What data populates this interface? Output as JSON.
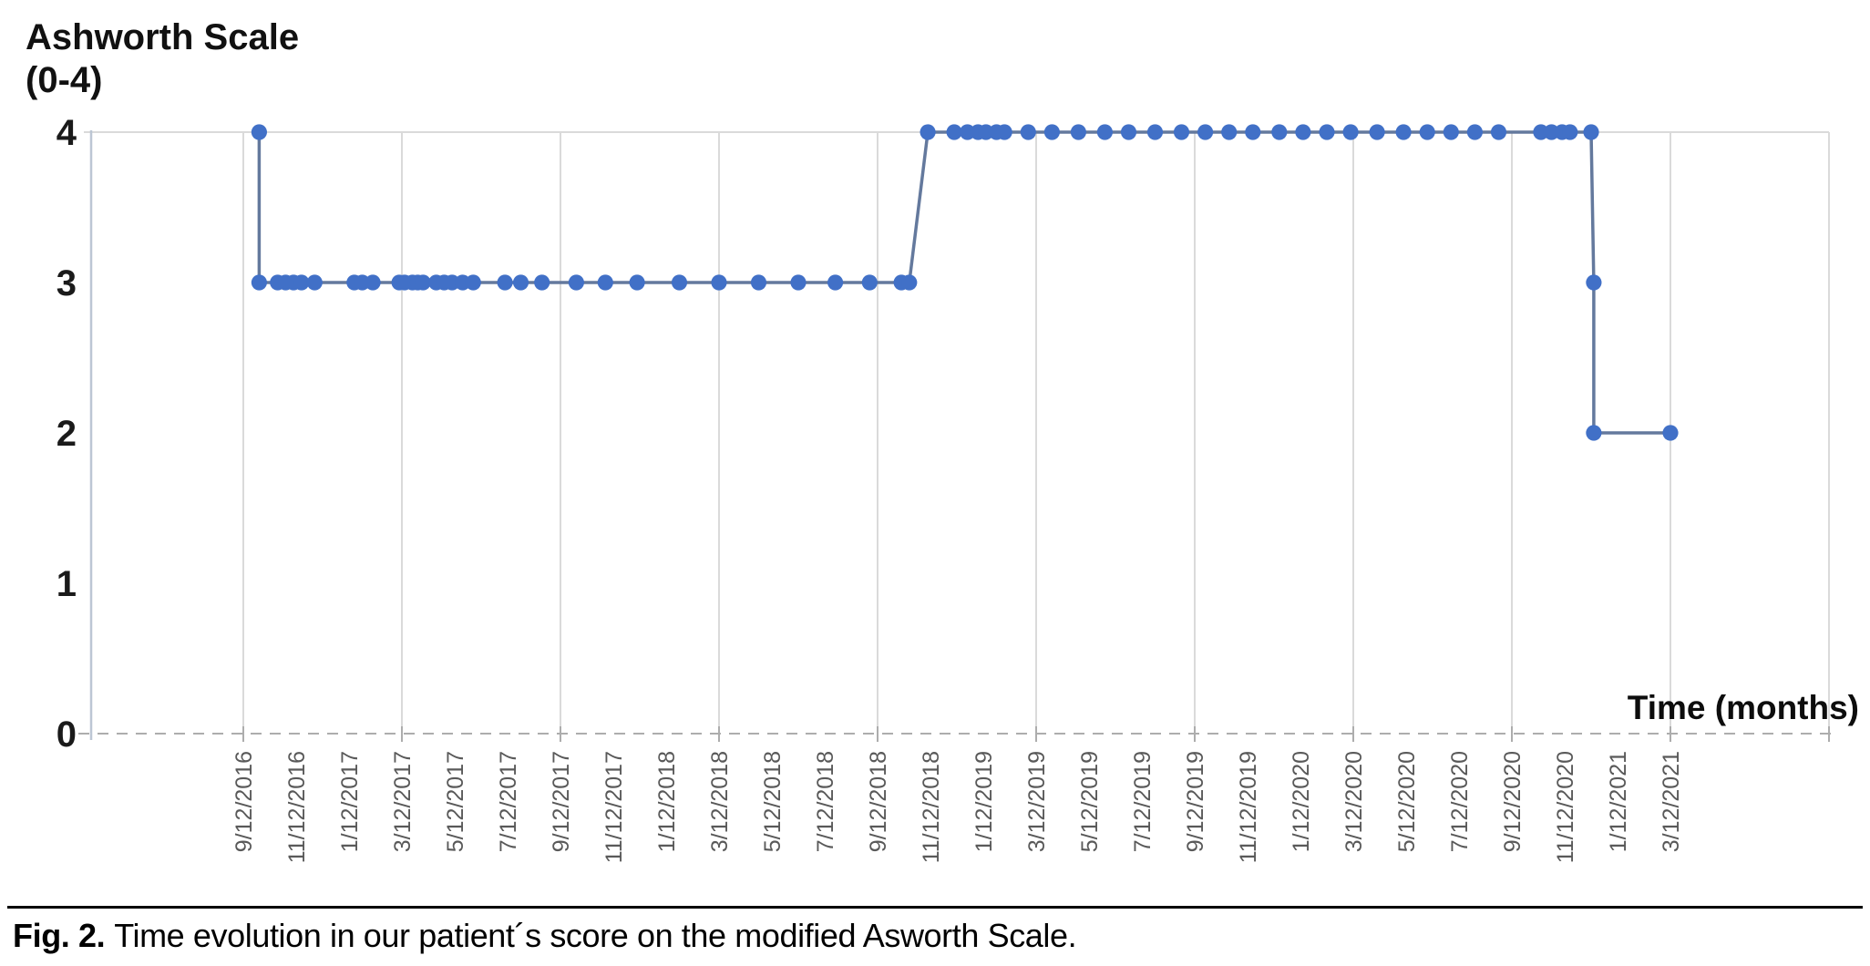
{
  "figure": {
    "title_line1": "Ashworth Scale",
    "title_line2": "(0-4)",
    "time_axis_label": "Time (months)",
    "caption_prefix": "Fig. 2.",
    "caption_text": "Time evolution in our patient´s score on the modified Asworth Scale."
  },
  "chart_data": {
    "type": "line",
    "title": "Ashworth Scale (0-4)",
    "xlabel": "Time (months)",
    "ylabel": "Ashworth Scale (0-4)",
    "ylim": [
      0,
      4
    ],
    "yticks": [
      4,
      3,
      2,
      1,
      0
    ],
    "x_unit": "months since 9/12/2016 (tick labels every 2 months, gridlines every 6 months)",
    "categories": [
      "9/12/2016",
      "11/12/2016",
      "1/12/2017",
      "3/12/2017",
      "5/12/2017",
      "7/12/2017",
      "9/12/2017",
      "11/12/2017",
      "1/12/2018",
      "3/12/2018",
      "5/12/2018",
      "7/12/2018",
      "9/12/2018",
      "11/12/2018",
      "1/12/2019",
      "3/12/2019",
      "5/12/2019",
      "7/12/2019",
      "9/12/2019",
      "11/12/2019",
      "1/12/2020",
      "3/12/2020",
      "5/12/2020",
      "7/12/2020",
      "9/12/2020",
      "11/12/2020",
      "1/12/2021",
      "3/12/2021"
    ],
    "grid": "vertical gridlines every 6 months plus top line at y=4; dashed baseline at y=0",
    "legend_position": "none",
    "points": [
      [
        0.6,
        4
      ],
      [
        0.6,
        3
      ],
      [
        1.3,
        3
      ],
      [
        1.6,
        3
      ],
      [
        1.9,
        3
      ],
      [
        2.2,
        3
      ],
      [
        2.7,
        3
      ],
      [
        4.2,
        3
      ],
      [
        4.5,
        3
      ],
      [
        4.9,
        3
      ],
      [
        5.9,
        3
      ],
      [
        6.1,
        3
      ],
      [
        6.4,
        3
      ],
      [
        6.6,
        3
      ],
      [
        6.8,
        3
      ],
      [
        7.3,
        3
      ],
      [
        7.6,
        3
      ],
      [
        7.9,
        3
      ],
      [
        8.3,
        3
      ],
      [
        8.7,
        3
      ],
      [
        9.9,
        3
      ],
      [
        10.5,
        3
      ],
      [
        11.3,
        3
      ],
      [
        12.6,
        3
      ],
      [
        13.7,
        3
      ],
      [
        14.9,
        3
      ],
      [
        16.5,
        3
      ],
      [
        18.0,
        3
      ],
      [
        19.5,
        3
      ],
      [
        21.0,
        3
      ],
      [
        22.4,
        3
      ],
      [
        23.7,
        3
      ],
      [
        24.9,
        3
      ],
      [
        25.2,
        3
      ],
      [
        25.9,
        4
      ],
      [
        26.9,
        4
      ],
      [
        27.4,
        4
      ],
      [
        27.8,
        4
      ],
      [
        28.1,
        4
      ],
      [
        28.5,
        4
      ],
      [
        28.8,
        4
      ],
      [
        29.7,
        4
      ],
      [
        30.6,
        4
      ],
      [
        31.6,
        4
      ],
      [
        32.6,
        4
      ],
      [
        33.5,
        4
      ],
      [
        34.5,
        4
      ],
      [
        35.5,
        4
      ],
      [
        36.4,
        4
      ],
      [
        37.3,
        4
      ],
      [
        38.2,
        4
      ],
      [
        39.2,
        4
      ],
      [
        40.1,
        4
      ],
      [
        41.0,
        4
      ],
      [
        41.9,
        4
      ],
      [
        42.9,
        4
      ],
      [
        43.9,
        4
      ],
      [
        44.8,
        4
      ],
      [
        45.7,
        4
      ],
      [
        46.6,
        4
      ],
      [
        47.5,
        4
      ],
      [
        49.1,
        4
      ],
      [
        49.5,
        4
      ],
      [
        49.9,
        4
      ],
      [
        50.2,
        4
      ],
      [
        51.0,
        4
      ],
      [
        51.1,
        3
      ],
      [
        51.1,
        2
      ],
      [
        54.0,
        2
      ]
    ],
    "colors": {
      "marker": "#4170c7",
      "line": "#64799d",
      "gridline": "#dadada",
      "y_axis_line": "#bcc6d4",
      "x_axis_dashed": "#adadad",
      "x_tick_label": "#595959",
      "y_tick_label": "#1a1a1a"
    }
  }
}
